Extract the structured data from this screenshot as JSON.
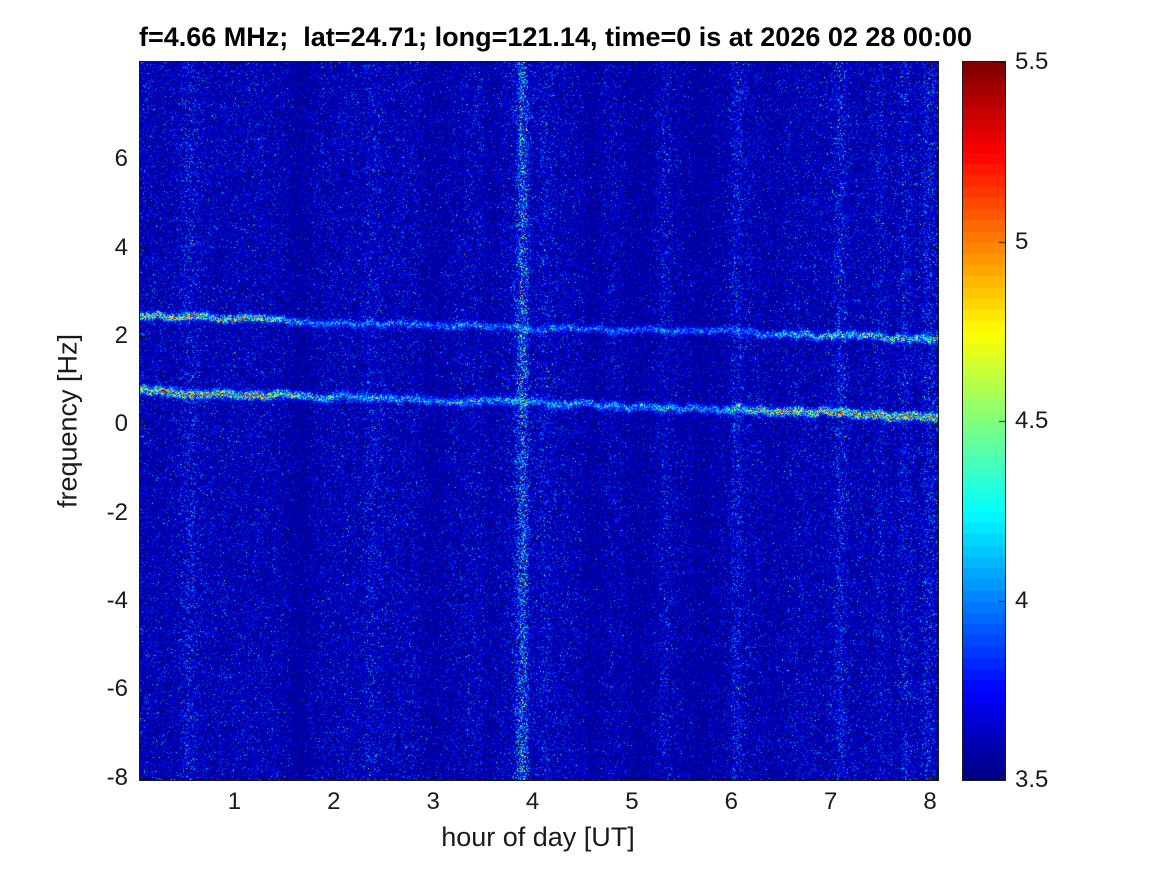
{
  "chart_data": {
    "type": "heatmap",
    "title": "f=4.66 MHz;  lat=24.71; long=121.14, time=0 is at 2026 02 28 00:00",
    "xlabel": "hour of day [UT]",
    "ylabel": "frequency [Hz]",
    "x_range": [
      0.05,
      8.08
    ],
    "y_range": [
      -8.05,
      8.2
    ],
    "x_ticks": [
      1,
      2,
      3,
      4,
      5,
      6,
      7,
      8
    ],
    "y_ticks": [
      -8,
      -6,
      -4,
      -2,
      0,
      2,
      4,
      6
    ],
    "colorbar": {
      "min": 3.5,
      "max": 5.5,
      "ticks": [
        3.5,
        4,
        4.5,
        5,
        5.5
      ],
      "colormap": "jet",
      "levels": 64
    },
    "noise_floor": 3.5,
    "noise_mean_above_floor": 0.12,
    "bands": [
      {
        "name": "upper-drifting-spectral-line",
        "y_start": 2.45,
        "y_end": 1.95,
        "sigma": 0.055,
        "amp_profile": [
          [
            0,
            1.0
          ],
          [
            0.3,
            0.95
          ],
          [
            1.3,
            0.85
          ],
          [
            1.9,
            0.4
          ],
          [
            6.2,
            0.38
          ],
          [
            6.8,
            0.7
          ],
          [
            8.1,
            0.75
          ]
        ]
      },
      {
        "name": "lower-drifting-spectral-line",
        "y_start": 0.78,
        "y_end": 0.18,
        "sigma": 0.06,
        "amp_profile": [
          [
            0,
            1.25
          ],
          [
            1.4,
            1.0
          ],
          [
            2.1,
            0.5
          ],
          [
            5.8,
            0.5
          ],
          [
            6.3,
            0.95
          ],
          [
            7.0,
            1.15
          ],
          [
            8.1,
            1.1
          ]
        ]
      }
    ],
    "vertical_stripes": [
      {
        "hour": 0.55,
        "sigma": 0.06,
        "amp": 0.5
      },
      {
        "hour": 1.65,
        "sigma": 0.1,
        "amp": -0.35
      },
      {
        "hour": 2.38,
        "sigma": 0.06,
        "amp": 0.3
      },
      {
        "hour": 3.0,
        "sigma": 0.12,
        "amp": -0.25
      },
      {
        "hour": 3.58,
        "sigma": 0.05,
        "amp": -0.2
      },
      {
        "hour": 3.9,
        "sigma": 0.04,
        "amp": 2.3
      },
      {
        "hour": 4.12,
        "sigma": 0.06,
        "amp": 0.35
      },
      {
        "hour": 4.6,
        "sigma": 0.1,
        "amp": -0.3
      },
      {
        "hour": 5.1,
        "sigma": 0.12,
        "amp": -0.28
      },
      {
        "hour": 5.33,
        "sigma": 0.04,
        "amp": 0.35
      },
      {
        "hour": 5.72,
        "sigma": 0.18,
        "amp": -0.3
      },
      {
        "hour": 6.05,
        "sigma": 0.04,
        "amp": 0.55
      },
      {
        "hour": 6.4,
        "sigma": 0.08,
        "amp": -0.2
      },
      {
        "hour": 7.1,
        "sigma": 0.05,
        "amp": 0.75
      },
      {
        "hour": 7.5,
        "sigma": 0.05,
        "amp": 0.3
      },
      {
        "hour": 7.75,
        "sigma": 0.04,
        "amp": 0.45
      },
      {
        "hour": 8.0,
        "sigma": 0.05,
        "amp": 0.65
      }
    ]
  }
}
